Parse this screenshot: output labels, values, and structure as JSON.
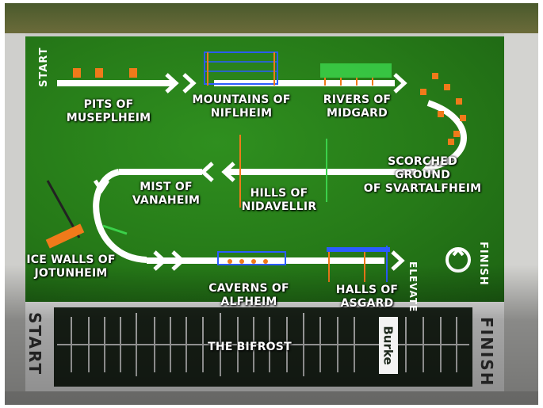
{
  "scene": {
    "colors": {
      "turf": "#267a18",
      "track_line": "#ffffff",
      "bifrost_field": "#1f2a1e",
      "concrete": "#cfcfcc",
      "equipment_orange": "#f07a1a",
      "equipment_green": "#3bd14a",
      "equipment_blue": "#2b5cff"
    }
  },
  "course": {
    "start_label": "START",
    "finish_label": "FINISH",
    "brand_mark": "ELEVATE"
  },
  "zones": [
    {
      "name": "PITS OF\nMUSEPLHEIM"
    },
    {
      "name": "MOUNTAINS OF\nNIFLHEIM"
    },
    {
      "name": "RIVERS OF\nMIDGARD"
    },
    {
      "name": "SCORCHED GROUND\nOF SVARTALFHEIM"
    },
    {
      "name": "MIST OF\nVANAHEIM"
    },
    {
      "name": "HILLS OF\nNIDAVELLIR"
    },
    {
      "name": "ICE WALLS OF\nJOTUNHEIM"
    },
    {
      "name": "CAVERNS OF\nALFHEIM"
    },
    {
      "name": "HALLS OF ASGARD"
    }
  ],
  "bifrost": {
    "title": "THE BIFROST",
    "start_label": "START",
    "finish_label": "FINISH",
    "brand": "Burke"
  }
}
